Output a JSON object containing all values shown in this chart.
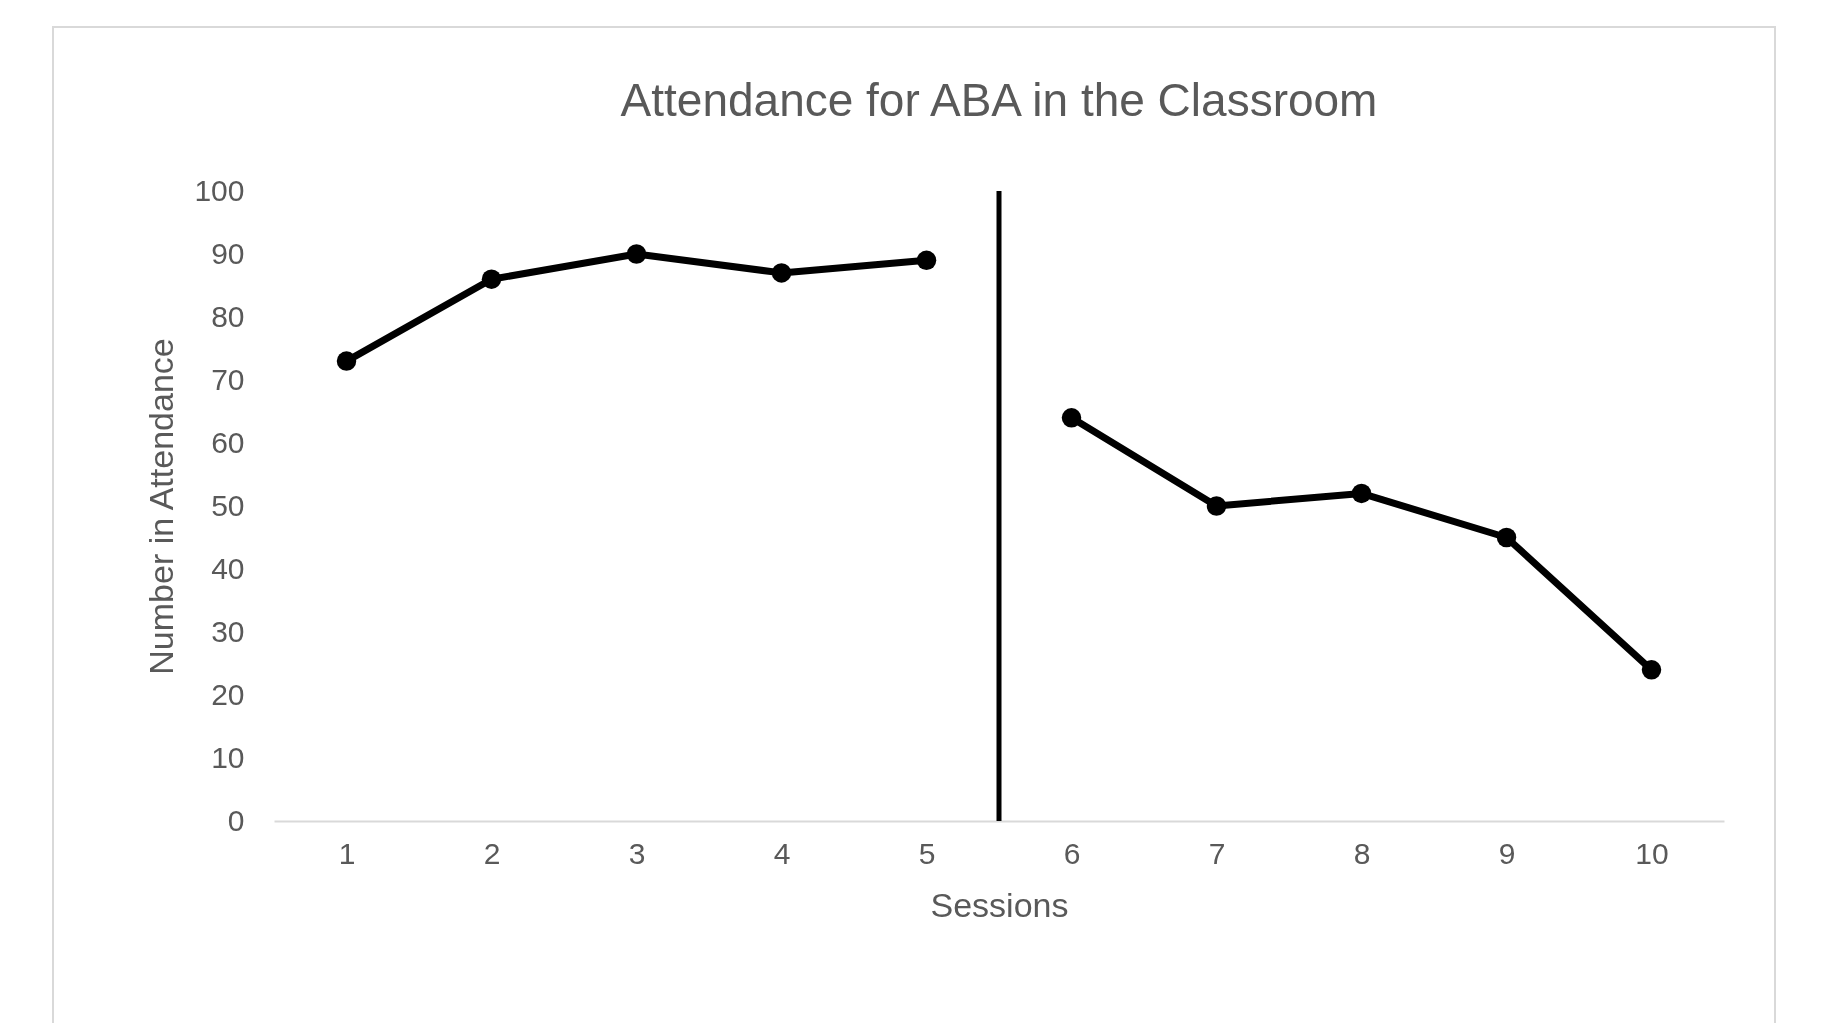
{
  "chart_data": {
    "type": "line",
    "title": "Attendance for ABA in the Classroom",
    "xlabel": "Sessions",
    "ylabel": "Number in Attendance",
    "series": [
      {
        "color": "#000000",
        "x": [
          1,
          2,
          3,
          4,
          5
        ],
        "values": [
          73,
          86,
          90,
          87,
          89
        ]
      },
      {
        "color": "#000000",
        "x": [
          6,
          7,
          8,
          9,
          10
        ],
        "values": [
          64,
          50,
          52,
          45,
          24
        ]
      }
    ],
    "xlim": [
      0.5,
      10.5
    ],
    "xticks": [
      1,
      2,
      3,
      4,
      5,
      6,
      7,
      8,
      9,
      10
    ],
    "ylim": [
      0,
      100
    ],
    "yticks": [
      0,
      10,
      20,
      30,
      40,
      50,
      60,
      70,
      80,
      90,
      100
    ],
    "ref_lines": [
      {
        "axis": "x",
        "value": 5.5,
        "color": "#000000"
      }
    ],
    "grid": false,
    "legend": false,
    "marker": "circle",
    "line_style": "solid"
  }
}
